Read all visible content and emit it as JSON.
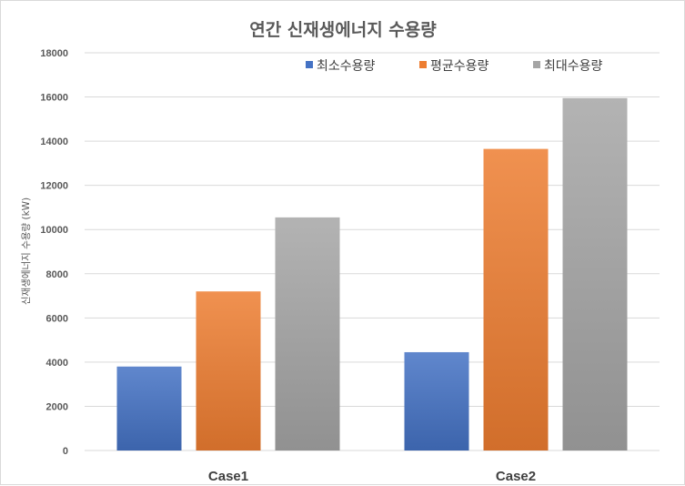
{
  "chart_data": {
    "type": "bar",
    "title": "연간 신재생에너지 수용량",
    "xlabel": "",
    "ylabel": "신재생에너지 수용량 (kW)",
    "categories": [
      "Case1",
      "Case2"
    ],
    "series": [
      {
        "name": "최소수용량",
        "values": [
          3800,
          4450
        ],
        "color": "#4472C4"
      },
      {
        "name": "평균수용량",
        "values": [
          7200,
          13650
        ],
        "color": "#ED7D31"
      },
      {
        "name": "최대수용량",
        "values": [
          10550,
          15950
        ],
        "color": "#A5A5A5"
      }
    ],
    "ylim": [
      0,
      18000
    ],
    "yticks": [
      0,
      2000,
      4000,
      6000,
      8000,
      10000,
      12000,
      14000,
      16000,
      18000
    ],
    "grid": true,
    "legend_position": "top-right"
  }
}
